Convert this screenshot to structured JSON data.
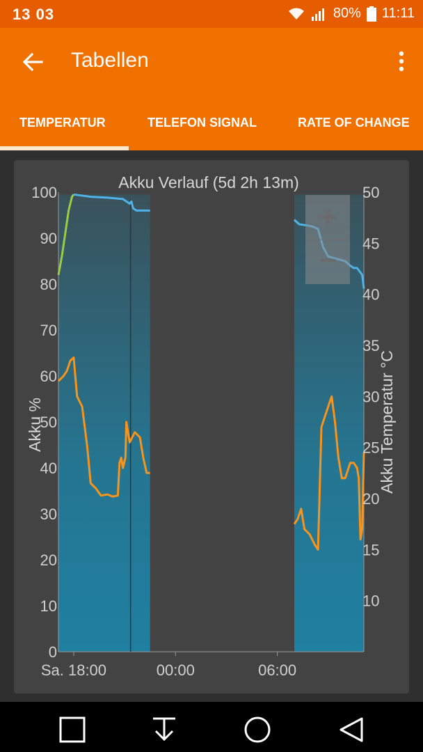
{
  "status_bar": {
    "left_time": "13 03",
    "battery": "80%",
    "clock": "11:11",
    "icons": [
      "wifi-icon",
      "signal-icon",
      "battery-icon"
    ]
  },
  "app_bar": {
    "title": "Tabellen",
    "back_icon": "arrow-left-icon",
    "menu_icon": "more-vert-icon"
  },
  "tabs": [
    {
      "label": "TEMPERATUR",
      "active": true
    },
    {
      "label": "TELEFON SIGNAL",
      "active": false
    },
    {
      "label": "RATE OF CHANGE",
      "active": false
    }
  ],
  "zoom": {
    "plus": "+",
    "minus": "−"
  },
  "colors": {
    "status_bar": "#e65c00",
    "app_bar": "#f07000",
    "battery_line": "#4fb3e8",
    "charging_line": "#9ccc43",
    "temperature_line": "#f7941d",
    "fill": "#1f7fa0"
  },
  "chart_data": {
    "type": "line",
    "title": "Akku Verlauf (5d 2h 13m)",
    "ylabel": "Akku %",
    "y2label": "Akku Temperatur °C",
    "ylim": [
      0,
      100
    ],
    "y2lim": [
      5,
      50
    ],
    "y_ticks": [
      0,
      10,
      20,
      30,
      40,
      50,
      60,
      70,
      80,
      90,
      100
    ],
    "y2_ticks": [
      10,
      15,
      20,
      25,
      30,
      35,
      40,
      45,
      50
    ],
    "x_ticks": [
      "Sa. 18:00",
      "00:00",
      "06:00"
    ],
    "x_unit": "hours",
    "x_tick_values": [
      17.5,
      23.5,
      29.5
    ],
    "xlim": [
      16.6,
      34.6
    ],
    "grid": false,
    "segments": [
      {
        "start": 16.6,
        "end": 22.0
      },
      {
        "start": 30.5,
        "end": 34.6
      }
    ],
    "marker_line_x": 20.85,
    "series": [
      {
        "axis": "left",
        "role": "charging",
        "x": [
          16.6,
          16.8,
          17.0,
          17.2,
          17.4,
          17.5
        ],
        "values": [
          82,
          86,
          91,
          96,
          99,
          99.5
        ]
      },
      {
        "axis": "left",
        "role": "battery",
        "x": [
          17.5,
          18.5,
          19.5,
          20.4,
          20.6,
          20.8,
          20.9,
          21.0,
          21.2,
          22.0
        ],
        "values": [
          99.5,
          99,
          98.8,
          98.5,
          98,
          97.5,
          98,
          96.5,
          96,
          96
        ],
        "x2": [
          30.5,
          30.8,
          31.2,
          31.6,
          31.9,
          32.2,
          32.5,
          33.0,
          33.5,
          33.8,
          34.0,
          34.2,
          34.5,
          34.6
        ],
        "values2": [
          94,
          93,
          92.8,
          92.5,
          92,
          88,
          86,
          85.5,
          85,
          84,
          83.5,
          83.5,
          82,
          79
        ]
      },
      {
        "axis": "right",
        "role": "temperature",
        "x": [
          16.6,
          16.9,
          17.1,
          17.3,
          17.5,
          17.7,
          18.0,
          18.3,
          18.5,
          18.8,
          19.1,
          19.5,
          19.8,
          20.1,
          20.2,
          20.3,
          20.4,
          20.55,
          20.6,
          20.8,
          21.1,
          21.4,
          21.6,
          21.8,
          22.0
        ],
        "values": [
          31.5,
          32.0,
          32.5,
          33.5,
          33.8,
          30.0,
          29.0,
          25.0,
          21.5,
          21.0,
          20.3,
          20.4,
          20.2,
          20.3,
          23.5,
          24.0,
          23.0,
          24.0,
          27.5,
          25.5,
          26.5,
          26.0,
          24.0,
          22.5,
          22.5
        ],
        "x2": [
          30.5,
          30.7,
          30.9,
          31.1,
          31.4,
          31.7,
          31.9,
          32.1,
          32.4,
          32.7,
          32.9,
          33.1,
          33.3,
          33.5,
          33.8,
          34.0,
          34.2,
          34.3,
          34.4,
          34.5,
          34.6
        ],
        "values2": [
          17.5,
          18.0,
          19.0,
          17.0,
          16.5,
          15.5,
          15.0,
          27.0,
          28.5,
          30.0,
          27.5,
          24.0,
          22.0,
          22.0,
          23.5,
          23.5,
          23.0,
          22.0,
          16.0,
          17.0,
          24.5
        ]
      }
    ]
  }
}
